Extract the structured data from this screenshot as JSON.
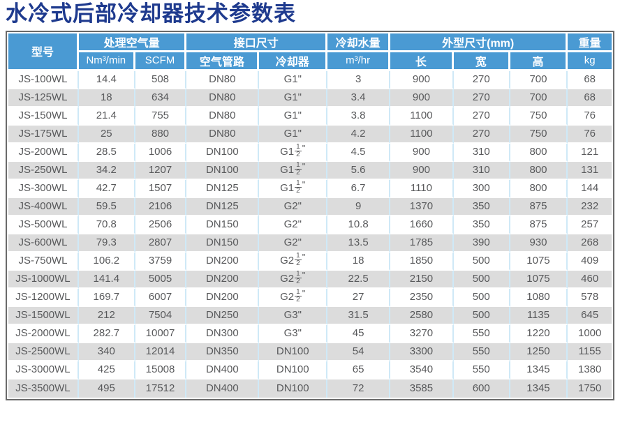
{
  "page": {
    "title": "水冷式后部冷却器技术参数表"
  },
  "colors": {
    "title_navy": "#1e3a8e",
    "header_blue": "#4a9ad3",
    "row_alt_gray": "#dcdcdc",
    "body_text_gray": "#58595b",
    "column_divider_blue": "#cfe9f7",
    "frame_gray": "#6a6a6a"
  },
  "table": {
    "header": {
      "model": "型号",
      "air_capacity": "处理空气量",
      "air_capacity_unit_nm3": "Nm³/min",
      "air_capacity_unit_scfm": "SCFM",
      "interface_size": "接口尺寸",
      "interface_air_pipe": "空气管路",
      "interface_cooler": "冷却器",
      "cooling_water": "冷却水量",
      "cooling_water_unit": "m³/hr",
      "dimensions": "外型尺寸(mm)",
      "dimension_length": "长",
      "dimension_width": "宽",
      "dimension_height": "高",
      "weight": "重量",
      "weight_unit": "kg"
    },
    "rows": [
      [
        "JS-100WL",
        "14.4",
        "508",
        "DN80",
        "G1\"",
        "3",
        "900",
        "270",
        "700",
        "68"
      ],
      [
        "JS-125WL",
        "18",
        "634",
        "DN80",
        "G1\"",
        "3.4",
        "900",
        "270",
        "700",
        "68"
      ],
      [
        "JS-150WL",
        "21.4",
        "755",
        "DN80",
        "G1\"",
        "3.8",
        "1100",
        "270",
        "750",
        "76"
      ],
      [
        "JS-175WL",
        "25",
        "880",
        "DN80",
        "G1\"",
        "4.2",
        "1100",
        "270",
        "750",
        "76"
      ],
      [
        "JS-200WL",
        "28.5",
        "1006",
        "DN100",
        "G1-1/2\"",
        "4.5",
        "900",
        "310",
        "800",
        "121"
      ],
      [
        "JS-250WL",
        "34.2",
        "1207",
        "DN100",
        "G1-1/2\"",
        "5.6",
        "900",
        "310",
        "800",
        "131"
      ],
      [
        "JS-300WL",
        "42.7",
        "1507",
        "DN125",
        "G1-1/2\"",
        "6.7",
        "1110",
        "300",
        "800",
        "144"
      ],
      [
        "JS-400WL",
        "59.5",
        "2106",
        "DN125",
        "G2\"",
        "9",
        "1370",
        "350",
        "875",
        "232"
      ],
      [
        "JS-500WL",
        "70.8",
        "2506",
        "DN150",
        "G2\"",
        "10.8",
        "1660",
        "350",
        "875",
        "257"
      ],
      [
        "JS-600WL",
        "79.3",
        "2807",
        "DN150",
        "G2\"",
        "13.5",
        "1785",
        "390",
        "930",
        "268"
      ],
      [
        "JS-750WL",
        "106.2",
        "3759",
        "DN200",
        "G2-1/2\"",
        "18",
        "1850",
        "500",
        "1075",
        "409"
      ],
      [
        "JS-1000WL",
        "141.4",
        "5005",
        "DN200",
        "G2-1/2\"",
        "22.5",
        "2150",
        "500",
        "1075",
        "460"
      ],
      [
        "JS-1200WL",
        "169.7",
        "6007",
        "DN200",
        "G2-1/2\"",
        "27",
        "2350",
        "500",
        "1080",
        "578"
      ],
      [
        "JS-1500WL",
        "212",
        "7504",
        "DN250",
        "G3\"",
        "31.5",
        "2580",
        "500",
        "1135",
        "645"
      ],
      [
        "JS-2000WL",
        "282.7",
        "10007",
        "DN300",
        "G3\"",
        "45",
        "3270",
        "550",
        "1220",
        "1000"
      ],
      [
        "JS-2500WL",
        "340",
        "12014",
        "DN350",
        "DN100",
        "54",
        "3300",
        "550",
        "1250",
        "1155"
      ],
      [
        "JS-3000WL",
        "425",
        "15008",
        "DN400",
        "DN100",
        "65",
        "3540",
        "550",
        "1345",
        "1380"
      ],
      [
        "JS-3500WL",
        "495",
        "17512",
        "DN400",
        "DN100",
        "72",
        "3585",
        "600",
        "1345",
        "1750"
      ]
    ]
  }
}
